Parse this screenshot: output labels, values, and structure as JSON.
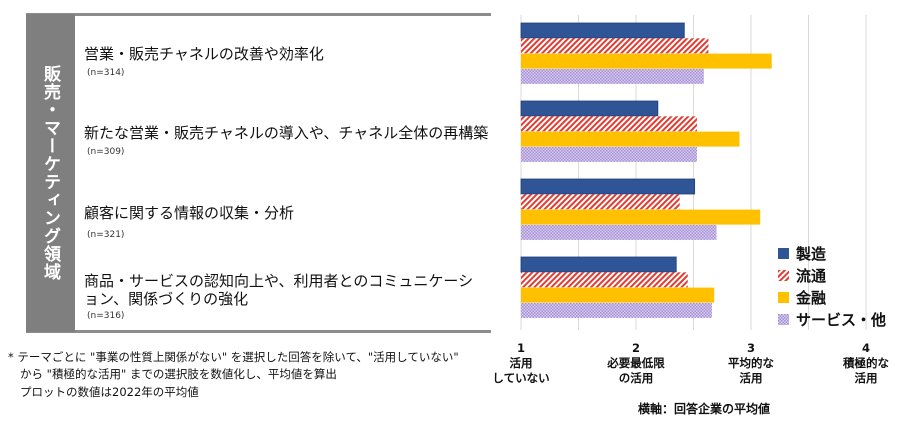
{
  "section_label": "販売・マーケティング領域",
  "categories": [
    {
      "label": "営業・販売チャネルの改善や効率化",
      "n": "(n=314)"
    },
    {
      "label": "新たな営業・販売チャネルの導入や、チャネル全体の再構築",
      "n": "(n=309)"
    },
    {
      "label": "顧客に関する情報の収集・分析",
      "n": "(n=321)"
    },
    {
      "label": "商品・サービスの認知向上や、利用者とのコミュニケーション、関係づくりの強化",
      "n": "(n=316)"
    }
  ],
  "notes": [
    "* テーマごとに \"事業の性質上関係がない\" を選択した回答を除いて、\"活用していない\"",
    "から \"積極的な活用\" までの選択肢を数値化し、平均値を算出",
    "プロットの数値は2022年の平均値"
  ],
  "chart_data": {
    "type": "bar",
    "orientation": "horizontal",
    "categories": [
      "営業・販売チャネルの改善や効率化",
      "新たな営業・販売チャネルの導入や、チャネル全体の再構築",
      "顧客に関する情報の収集・分析",
      "商品・サービスの認知向上や、利用者とのコミュニケーション、関係づくりの強化"
    ],
    "series": [
      {
        "name": "製造",
        "color": "#2f5597",
        "pattern": "solid",
        "values": [
          2.42,
          2.19,
          2.51,
          2.35
        ]
      },
      {
        "name": "流通",
        "color": "#e03c31",
        "pattern": "diagonal",
        "values": [
          2.63,
          2.53,
          2.38,
          2.45
        ]
      },
      {
        "name": "金融",
        "color": "#ffc000",
        "pattern": "solid",
        "values": [
          3.18,
          2.9,
          3.08,
          2.68
        ]
      },
      {
        "name": "サービス・他",
        "color": "#b4a0dc",
        "pattern": "dots",
        "values": [
          2.59,
          2.53,
          2.7,
          2.66
        ]
      }
    ],
    "xlim": [
      1,
      4
    ],
    "ticks": [
      {
        "value": 1,
        "num": "1",
        "line1": "活用",
        "line2": "していない"
      },
      {
        "value": 2,
        "num": "2",
        "line1": "必要最低限",
        "line2": "の活用"
      },
      {
        "value": 3,
        "num": "3",
        "line1": "平均的な",
        "line2": "活用"
      },
      {
        "value": 4,
        "num": "4",
        "line1": "積極的な",
        "line2": "活用"
      }
    ],
    "xlabel": "横軸：回答企業の平均値",
    "grid": true,
    "legend_position": "bottom-right"
  }
}
